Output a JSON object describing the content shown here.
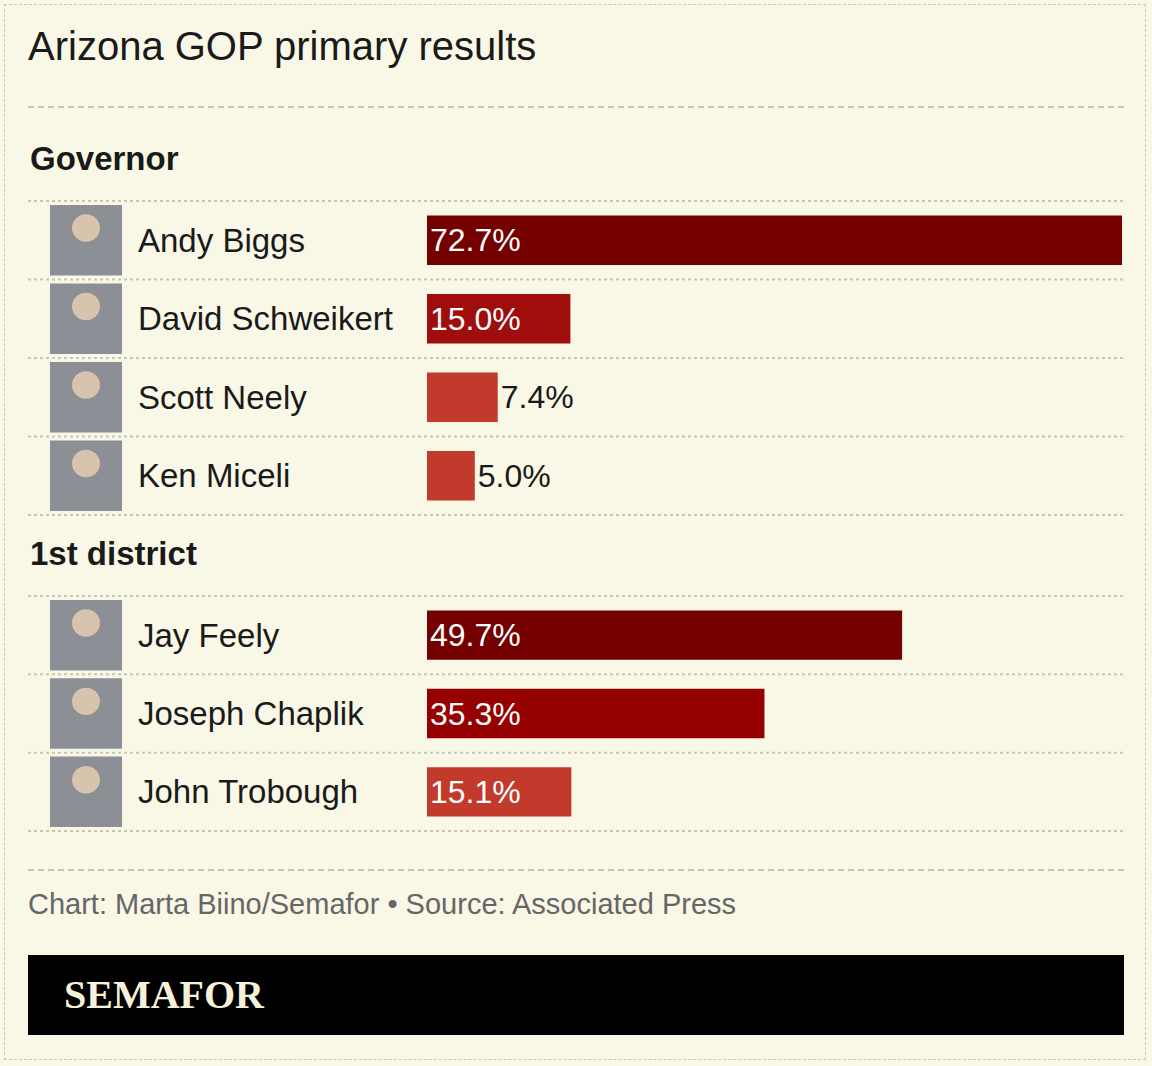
{
  "title": "Arizona GOP primary results",
  "chart_data": [
    {
      "type": "bar",
      "orientation": "horizontal",
      "title": "Governor",
      "categories": [
        "Andy Biggs",
        "David Schweikert",
        "Scott Neely",
        "Ken Miceli"
      ],
      "values": [
        72.7,
        15.0,
        7.4,
        5.0
      ],
      "value_labels": [
        "72.7%",
        "15.0%",
        "7.4%",
        "5.0%"
      ],
      "colors": [
        "#750000",
        "#a00d0d",
        "#c23a2b",
        "#c23a2b"
      ],
      "xlim": [
        0,
        72.7
      ],
      "data_labels": true,
      "tick_labels": "y",
      "grid": false
    },
    {
      "type": "bar",
      "orientation": "horizontal",
      "title": "1st district",
      "categories": [
        "Jay Feely",
        "Joseph Chaplik",
        "John Trobough"
      ],
      "values": [
        49.7,
        35.3,
        15.1
      ],
      "value_labels": [
        "49.7%",
        "35.3%",
        "15.1%"
      ],
      "colors": [
        "#750000",
        "#950000",
        "#c23a2b"
      ],
      "xlim": [
        0,
        72.7
      ],
      "data_labels": true,
      "tick_labels": "y",
      "grid": false
    }
  ],
  "source": "Chart: Marta Biino/Semafor • Source: Associated Press",
  "brand": "SEMAFOR"
}
